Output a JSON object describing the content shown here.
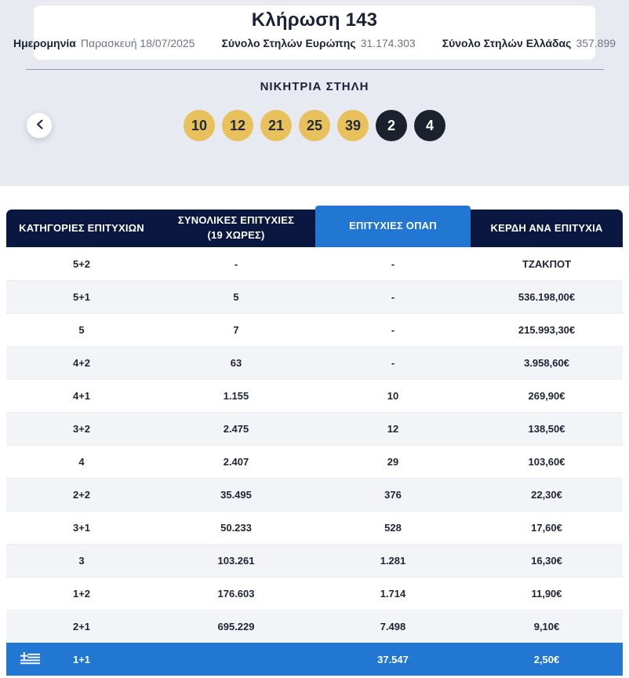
{
  "header": {
    "title": "Κλήρωση 143",
    "meta": [
      {
        "label": "Ημερομηνία",
        "value": "Παρασκευή 18/07/2025"
      },
      {
        "label": "Σύνολο Στηλών Ευρώπης",
        "value": "31.174.303"
      },
      {
        "label": "Σύνολο Στηλών Ελλάδας",
        "value": "357.899"
      }
    ]
  },
  "winning_column": {
    "title": "ΝΙΚΗΤΡΙΑ ΣΤΗΛΗ",
    "numbers": [
      "10",
      "12",
      "21",
      "25",
      "39"
    ],
    "euro_numbers": [
      "2",
      "4"
    ],
    "prev_button_icon": "chevron-left-icon"
  },
  "table": {
    "columns": [
      {
        "line1": "ΚΑΤΗΓΟΡΙΕΣ ΕΠΙΤΥΧΙΩΝ",
        "line2": ""
      },
      {
        "line1": "ΣΥΝΟΛΙΚΕΣ ΕΠΙΤΥΧΙΕΣ",
        "line2": "(19 ΧΩΡΕΣ)"
      },
      {
        "line1": "ΕΠΙΤΥΧΙΕΣ ΟΠΑΠ",
        "line2": ""
      },
      {
        "line1": "ΚΕΡΔΗ ΑΝΑ ΕΠΙΤΥΧΙΑ",
        "line2": ""
      }
    ],
    "rows": [
      {
        "category": "5+2",
        "total": "-",
        "opap": "-",
        "prize": "ΤΖΑΚΠΟΤ"
      },
      {
        "category": "5+1",
        "total": "5",
        "opap": "-",
        "prize": "536.198,00€"
      },
      {
        "category": "5",
        "total": "7",
        "opap": "-",
        "prize": "215.993,30€"
      },
      {
        "category": "4+2",
        "total": "63",
        "opap": "-",
        "prize": "3.958,60€"
      },
      {
        "category": "4+1",
        "total": "1.155",
        "opap": "10",
        "prize": "269,90€"
      },
      {
        "category": "3+2",
        "total": "2.475",
        "opap": "12",
        "prize": "138,50€"
      },
      {
        "category": "4",
        "total": "2.407",
        "opap": "29",
        "prize": "103,60€"
      },
      {
        "category": "2+2",
        "total": "35.495",
        "opap": "376",
        "prize": "22,30€"
      },
      {
        "category": "3+1",
        "total": "50.233",
        "opap": "528",
        "prize": "17,60€"
      },
      {
        "category": "3",
        "total": "103.261",
        "opap": "1.281",
        "prize": "16,30€"
      },
      {
        "category": "1+2",
        "total": "176.603",
        "opap": "1.714",
        "prize": "11,90€"
      },
      {
        "category": "2+1",
        "total": "695.229",
        "opap": "7.498",
        "prize": "9,10€"
      }
    ],
    "highlight_row": {
      "category": "1+1",
      "total": "",
      "opap": "37.547",
      "prize": "2,50€",
      "flag_icon": "greek-flag-icon"
    }
  },
  "colors": {
    "page_gray": "#e8eaf2",
    "navy": "#0a1740",
    "accent_blue": "#2277d3",
    "gold": "#e8c15c",
    "dark_ball": "#1c212e"
  }
}
